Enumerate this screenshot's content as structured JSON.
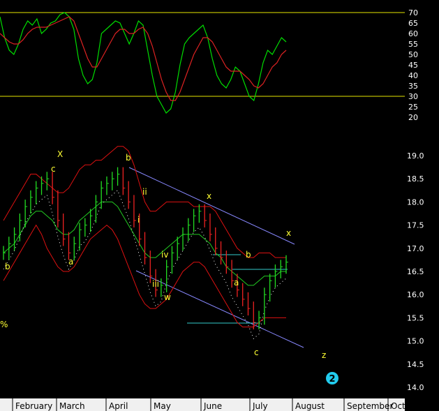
{
  "chart_data": [
    {
      "type": "line",
      "panel": "oscillator",
      "ylim": [
        20,
        70
      ],
      "yticks": [
        70,
        65,
        60,
        55,
        50,
        45,
        40,
        35,
        30,
        25,
        20
      ],
      "reference_lines": [
        70,
        30
      ],
      "series": [
        {
          "color": "#00dd00",
          "values": [
            68,
            58,
            52,
            50,
            55,
            62,
            66,
            64,
            67,
            60,
            62,
            65,
            66,
            69,
            70,
            68,
            62,
            48,
            40,
            36,
            38,
            46,
            60,
            62,
            64,
            66,
            65,
            60,
            55,
            60,
            66,
            64,
            52,
            40,
            30,
            26,
            22,
            24,
            32,
            45,
            55,
            58,
            60,
            62,
            64,
            58,
            48,
            40,
            36,
            34,
            38,
            44,
            42,
            36,
            30,
            28,
            36,
            46,
            52,
            50,
            54,
            58,
            56
          ]
        },
        {
          "color": "#dd2222",
          "values": [
            60,
            58,
            56,
            55,
            55,
            57,
            60,
            62,
            63,
            63,
            63,
            64,
            65,
            66,
            67,
            68,
            66,
            60,
            54,
            48,
            44,
            44,
            48,
            52,
            56,
            60,
            62,
            62,
            60,
            60,
            62,
            63,
            60,
            54,
            46,
            38,
            32,
            28,
            28,
            32,
            38,
            44,
            50,
            54,
            58,
            58,
            56,
            52,
            48,
            44,
            42,
            42,
            42,
            40,
            38,
            35,
            34,
            36,
            40,
            44,
            46,
            50,
            52
          ]
        }
      ]
    },
    {
      "type": "line",
      "panel": "price",
      "ylim": [
        14.0,
        19.0
      ],
      "yticks": [
        "19.0",
        "18.5",
        "18.0",
        "17.5",
        "17.0",
        "16.5",
        "16.0",
        "15.5",
        "15.0",
        "14.5",
        "14.0"
      ],
      "xlabels": [
        "February",
        "March",
        "April",
        "May",
        "June",
        "July",
        "August",
        "September",
        "Oct"
      ],
      "closes": [
        16.9,
        17.1,
        17.3,
        17.6,
        17.9,
        18.1,
        18.3,
        18.4,
        18.5,
        18.1,
        17.6,
        17.2,
        16.9,
        17.1,
        17.4,
        17.5,
        17.7,
        18.0,
        18.3,
        18.4,
        18.5,
        18.6,
        18.3,
        18.0,
        17.6,
        17.2,
        16.8,
        16.4,
        16.1,
        16.2,
        16.6,
        16.9,
        17.1,
        17.3,
        17.5,
        17.7,
        17.8,
        17.6,
        17.3,
        17.0,
        16.8,
        16.6,
        16.3,
        16.1,
        15.9,
        15.7,
        15.4,
        15.5,
        16.0,
        16.3,
        16.5,
        16.6,
        16.7
      ],
      "upper_band": [
        17.6,
        17.8,
        18.0,
        18.2,
        18.4,
        18.6,
        18.6,
        18.5,
        18.4,
        18.3,
        18.2,
        18.2,
        18.3,
        18.5,
        18.7,
        18.8,
        18.8,
        18.9,
        18.9,
        19.0,
        19.1,
        19.2,
        19.2,
        19.1,
        18.8,
        18.4,
        18.0,
        17.8,
        17.8,
        17.9,
        18.0,
        18.0,
        18.0,
        18.0,
        18.0,
        17.9,
        17.9,
        17.9,
        17.9,
        17.8,
        17.6,
        17.4,
        17.2,
        17.0,
        16.9,
        16.8,
        16.8,
        16.9,
        16.9,
        16.9,
        16.8,
        16.8,
        16.8
      ],
      "lower_band": [
        16.3,
        16.5,
        16.7,
        16.9,
        17.1,
        17.3,
        17.5,
        17.3,
        17.0,
        16.8,
        16.6,
        16.5,
        16.5,
        16.6,
        16.8,
        17.0,
        17.2,
        17.3,
        17.4,
        17.5,
        17.4,
        17.2,
        16.9,
        16.6,
        16.3,
        16.0,
        15.8,
        15.7,
        15.7,
        15.8,
        15.9,
        16.1,
        16.3,
        16.5,
        16.6,
        16.7,
        16.7,
        16.6,
        16.4,
        16.2,
        16.0,
        15.8,
        15.6,
        15.4,
        15.3,
        15.3,
        15.3,
        15.4,
        15.5,
        15.5,
        15.5,
        15.5,
        15.5
      ],
      "moving_average": [
        16.9,
        17.0,
        17.1,
        17.3,
        17.5,
        17.7,
        17.8,
        17.8,
        17.7,
        17.6,
        17.4,
        17.3,
        17.3,
        17.4,
        17.6,
        17.7,
        17.8,
        17.9,
        18.0,
        18.0,
        18.0,
        17.9,
        17.7,
        17.5,
        17.3,
        17.1,
        16.9,
        16.8,
        16.8,
        16.9,
        17.0,
        17.1,
        17.2,
        17.3,
        17.3,
        17.3,
        17.3,
        17.2,
        17.1,
        16.9,
        16.8,
        16.6,
        16.5,
        16.4,
        16.3,
        16.2,
        16.2,
        16.3,
        16.4,
        16.4,
        16.4,
        16.5,
        16.5
      ],
      "annotations": [
        "X",
        "c",
        "b",
        "a",
        "b",
        "ii",
        "i",
        "iv",
        "iii",
        "w",
        "x",
        "b",
        "a",
        "c",
        "x",
        "z",
        "%"
      ]
    }
  ],
  "wave_count_marker": "2"
}
